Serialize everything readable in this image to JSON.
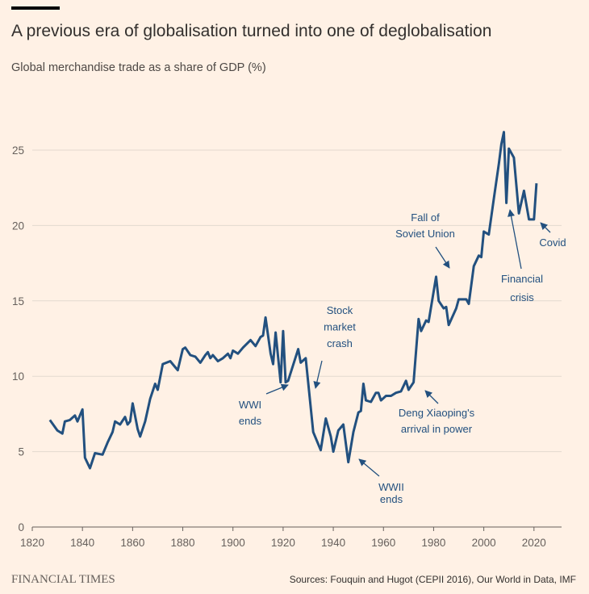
{
  "chart_data": {
    "type": "line",
    "title": "A previous era of globalisation turned into one of deglobalisation",
    "subtitle": "Global merchandise trade as a share of GDP (%)",
    "brand": "FINANCIAL TIMES",
    "source": "Sources: Fouquin and Hugot (CEPII 2016), Our World in Data, IMF",
    "xlim": [
      1820,
      2031
    ],
    "xticks": [
      1820,
      1840,
      1860,
      1880,
      1900,
      1920,
      1940,
      1960,
      1980,
      2000,
      2020
    ],
    "ylim": [
      0,
      28.5
    ],
    "yticks": [
      0,
      5,
      10,
      15,
      20,
      25
    ],
    "grid": true,
    "series": [
      {
        "color": "#22507f",
        "x": [
          1827,
          1830,
          1832,
          1833,
          1835,
          1837,
          1838,
          1840,
          1841,
          1843,
          1845,
          1848,
          1850,
          1852,
          1853,
          1855,
          1857,
          1858,
          1859,
          1860,
          1862,
          1863,
          1865,
          1867,
          1868,
          1869,
          1870,
          1872,
          1875,
          1877,
          1878,
          1880,
          1881,
          1883,
          1885,
          1887,
          1889,
          1890,
          1891,
          1892,
          1894,
          1896,
          1898,
          1899,
          1900,
          1902,
          1904,
          1907,
          1909,
          1911,
          1912,
          1913,
          1915,
          1916,
          1917,
          1919,
          1920,
          1921,
          1922,
          1926,
          1927,
          1929,
          1932,
          1935,
          1937,
          1939,
          1940,
          1942,
          1944,
          1946,
          1948,
          1950,
          1951,
          1952,
          1953,
          1955,
          1957,
          1958,
          1959,
          1961,
          1963,
          1965,
          1967,
          1969,
          1970,
          1972,
          1974,
          1975,
          1977,
          1978,
          1981,
          1982,
          1984,
          1985,
          1986,
          1989,
          1990,
          1993,
          1994,
          1996,
          1998,
          1999,
          2000,
          2002,
          2004,
          2006,
          2007,
          2008,
          2009,
          2010,
          2012,
          2014,
          2016,
          2018,
          2020,
          2021
        ],
        "values": [
          7.1,
          6.4,
          6.2,
          7.0,
          7.1,
          7.4,
          7.0,
          7.8,
          4.6,
          3.9,
          4.9,
          4.8,
          5.6,
          6.3,
          7.0,
          6.8,
          7.3,
          6.8,
          7.0,
          8.2,
          6.5,
          6.0,
          7.0,
          8.5,
          9.0,
          9.5,
          9.1,
          10.8,
          11.0,
          10.6,
          10.4,
          11.8,
          11.9,
          11.4,
          11.3,
          10.9,
          11.4,
          11.6,
          11.2,
          11.4,
          11.0,
          11.2,
          11.5,
          11.2,
          11.7,
          11.5,
          11.9,
          12.4,
          12.0,
          12.6,
          12.7,
          13.9,
          11.5,
          10.8,
          12.9,
          9.6,
          13.0,
          9.6,
          9.7,
          11.8,
          10.9,
          11.2,
          6.3,
          5.1,
          7.2,
          6.0,
          5.0,
          6.4,
          6.8,
          4.3,
          6.3,
          7.6,
          7.7,
          9.5,
          8.4,
          8.3,
          8.9,
          8.9,
          8.4,
          8.7,
          8.7,
          8.9,
          9.0,
          9.7,
          9.1,
          9.6,
          13.8,
          13.0,
          13.7,
          13.6,
          16.6,
          15.0,
          14.5,
          14.6,
          13.4,
          14.5,
          15.1,
          15.1,
          14.8,
          17.3,
          18.0,
          17.9,
          19.6,
          19.4,
          21.8,
          24.1,
          25.4,
          26.2,
          21.5,
          25.1,
          24.5,
          20.8,
          22.3,
          20.4,
          20.4,
          22.8
        ]
      }
    ],
    "annotations": [
      {
        "lines": [
          "Stock",
          "market",
          "crash"
        ]
      },
      {
        "lines": [
          "WWI",
          "ends"
        ]
      },
      {
        "lines": [
          "WWII",
          "ends"
        ]
      },
      {
        "lines": [
          "Deng Xiaoping's",
          "arrival in power"
        ]
      },
      {
        "lines": [
          "Fall of",
          "Soviet Union"
        ]
      },
      {
        "lines": [
          "Financial",
          "crisis"
        ]
      },
      {
        "lines": [
          "Covid"
        ]
      }
    ]
  }
}
